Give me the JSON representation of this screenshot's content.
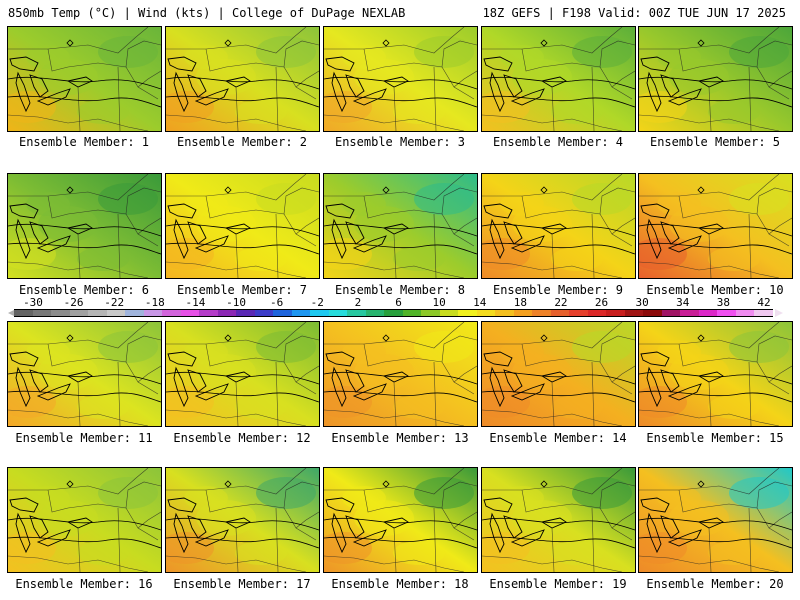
{
  "header": {
    "left": "850mb Temp (°C) | Wind (kts) | College of DuPage NEXLAB",
    "right": "18Z GEFS | F198 Valid: 00Z TUE JUN 17 2025"
  },
  "panels": [
    {
      "label": "Ensemble Member: 1",
      "base": "#9ccc2c",
      "warm": "#f0b418",
      "cool": "#6ab53a"
    },
    {
      "label": "Ensemble Member: 2",
      "base": "#d8e020",
      "warm": "#f0a020",
      "cool": "#8cc43a"
    },
    {
      "label": "Ensemble Member: 3",
      "base": "#e6e820",
      "warm": "#f0a828",
      "cool": "#9ccc2c"
    },
    {
      "label": "Ensemble Member: 4",
      "base": "#b0d828",
      "warm": "#f4c020",
      "cool": "#5caf3a"
    },
    {
      "label": "Ensemble Member: 5",
      "base": "#98c82c",
      "warm": "#f4d418",
      "cool": "#4ca63a"
    },
    {
      "label": "Ensemble Member: 6",
      "base": "#7cbc34",
      "warm": "#d4e020",
      "cool": "#3a9a3a"
    },
    {
      "label": "Ensemble Member: 7",
      "base": "#f0ea18",
      "warm": "#f4b420",
      "cool": "#c8dc20"
    },
    {
      "label": "Ensemble Member: 8",
      "base": "#9ccc2c",
      "warm": "#f4d418",
      "cool": "#2ebc8a"
    },
    {
      "label": "Ensemble Member: 9",
      "base": "#f4d418",
      "warm": "#ee8a28",
      "cool": "#b8d828"
    },
    {
      "label": "Ensemble Member: 10",
      "base": "#f4c020",
      "warm": "#e8602c",
      "cool": "#d8e020"
    },
    {
      "label": "Ensemble Member: 11",
      "base": "#dce420",
      "warm": "#f4a828",
      "cool": "#8cc43a"
    },
    {
      "label": "Ensemble Member: 12",
      "base": "#d8e020",
      "warm": "#f4c020",
      "cool": "#7cbc34"
    },
    {
      "label": "Ensemble Member: 13",
      "base": "#f4c020",
      "warm": "#ee9428",
      "cool": "#f0ea18"
    },
    {
      "label": "Ensemble Member: 14",
      "base": "#f4b020",
      "warm": "#ee8a28",
      "cool": "#b8d828"
    },
    {
      "label": "Ensemble Member: 15",
      "base": "#f4d418",
      "warm": "#ee8a28",
      "cool": "#8cc43a"
    },
    {
      "label": "Ensemble Member: 16",
      "base": "#c8dc20",
      "warm": "#f4c020",
      "cool": "#8cc43a"
    },
    {
      "label": "Ensemble Member: 17",
      "base": "#d8e020",
      "warm": "#ee9428",
      "cool": "#3fa868"
    },
    {
      "label": "Ensemble Member: 18",
      "base": "#f0ea18",
      "warm": "#ee9428",
      "cool": "#3a9a3a"
    },
    {
      "label": "Ensemble Member: 19",
      "base": "#d8e020",
      "warm": "#f4c020",
      "cool": "#3a9a3a"
    },
    {
      "label": "Ensemble Member: 20",
      "base": "#f4c020",
      "warm": "#ee8a28",
      "cool": "#20c8c8"
    }
  ],
  "colorbar": {
    "ticks": [
      "-30",
      "-26",
      "-22",
      "-18",
      "-14",
      "-10",
      "-6",
      "-2",
      "2",
      "6",
      "10",
      "14",
      "18",
      "22",
      "26",
      "30",
      "34",
      "38",
      "42"
    ],
    "colors": [
      "#646464",
      "#787878",
      "#8c8c8c",
      "#a0a0a0",
      "#b4b4b4",
      "#c8c8c8",
      "#a0b4dc",
      "#c896e6",
      "#d264dc",
      "#e650e6",
      "#b43cc8",
      "#8c28b4",
      "#5a28b4",
      "#3c3cc8",
      "#1e64dc",
      "#1e96f0",
      "#1ec8f0",
      "#28dcdc",
      "#28c8a0",
      "#28b46e",
      "#28a03c",
      "#50b428",
      "#8cc828",
      "#c8dc1e",
      "#f0f01e",
      "#f4dc1e",
      "#f4c01e",
      "#f4a01e",
      "#ee8228",
      "#e6602c",
      "#e6402c",
      "#dc2828",
      "#c81e1e",
      "#a01414",
      "#8c0a0a",
      "#a01464",
      "#c81e96",
      "#dc28c8",
      "#f050f0",
      "#f08cf0",
      "#f0c8f0"
    ]
  }
}
